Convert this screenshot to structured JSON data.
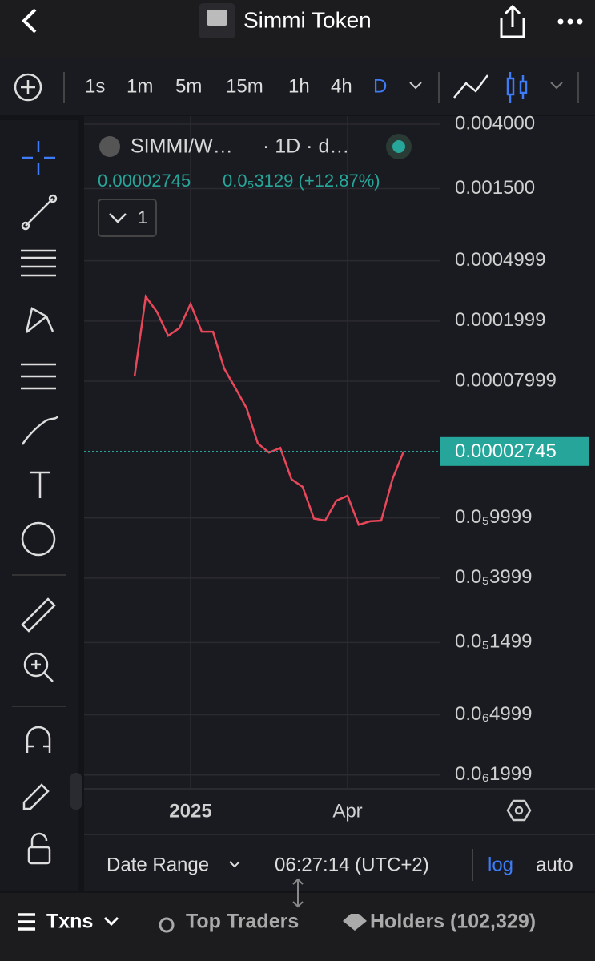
{
  "header": {
    "title": "Simmi Token"
  },
  "timeframes": [
    "1s",
    "1m",
    "5m",
    "15m",
    "1h",
    "4h",
    "D"
  ],
  "chart_data": {
    "type": "line",
    "title": "SIMMI/W…",
    "subtitle": "· 1D · d…",
    "legend_price": "0.00002745",
    "legend_change": "0.0₅3129 (+12.87%)",
    "indicator_count": "1",
    "last_price_label": "0.00002745",
    "log_scale": true,
    "grid": true,
    "color": "#e8475a",
    "categories": [
      null,
      null,
      null,
      null,
      null,
      "2025",
      null,
      null,
      null,
      null,
      null,
      null,
      null,
      null,
      null,
      null,
      null,
      null,
      null,
      "Apr",
      null,
      null,
      null,
      null,
      null
    ],
    "values": [
      8.6e-05,
      0.00029,
      0.00023,
      0.00016,
      0.00018,
      0.00026,
      0.00017,
      0.00017,
      9.7e-05,
      7.2e-05,
      5.3e-05,
      3.1e-05,
      2.7e-05,
      2.9e-05,
      1.8e-05,
      1.6e-05,
      9.9e-06,
      9.6e-06,
      1.3e-05,
      1.4e-05,
      9e-06,
      9.5e-06,
      9.6e-06,
      1.8e-05,
      2.745e-05
    ],
    "ylim": [
      1.6e-07,
      0.0042
    ],
    "yticks": [
      {
        "value": 0.004,
        "label": "0.004000"
      },
      {
        "value": 0.0015,
        "label": "0.001500"
      },
      {
        "value": 0.0004999,
        "label": "0.0004999"
      },
      {
        "value": 0.0001999,
        "label": "0.0001999"
      },
      {
        "value": 7.999e-05,
        "label": "0.00007999"
      },
      {
        "value": 9.999e-06,
        "label": "0.0₅9999"
      },
      {
        "value": 3.999e-06,
        "label": "0.0₅3999"
      },
      {
        "value": 1.499e-06,
        "label": "0.0₅1499"
      },
      {
        "value": 4.999e-07,
        "label": "0.0₆4999"
      },
      {
        "value": 1.999e-07,
        "label": "0.0₆1999"
      }
    ]
  },
  "footer": {
    "date_range": "Date Range",
    "time": "06:27:14 (UTC+2)",
    "log": "log",
    "auto": "auto"
  },
  "tabs": [
    "Txns",
    "Top Traders",
    "Holders (102,329)"
  ]
}
